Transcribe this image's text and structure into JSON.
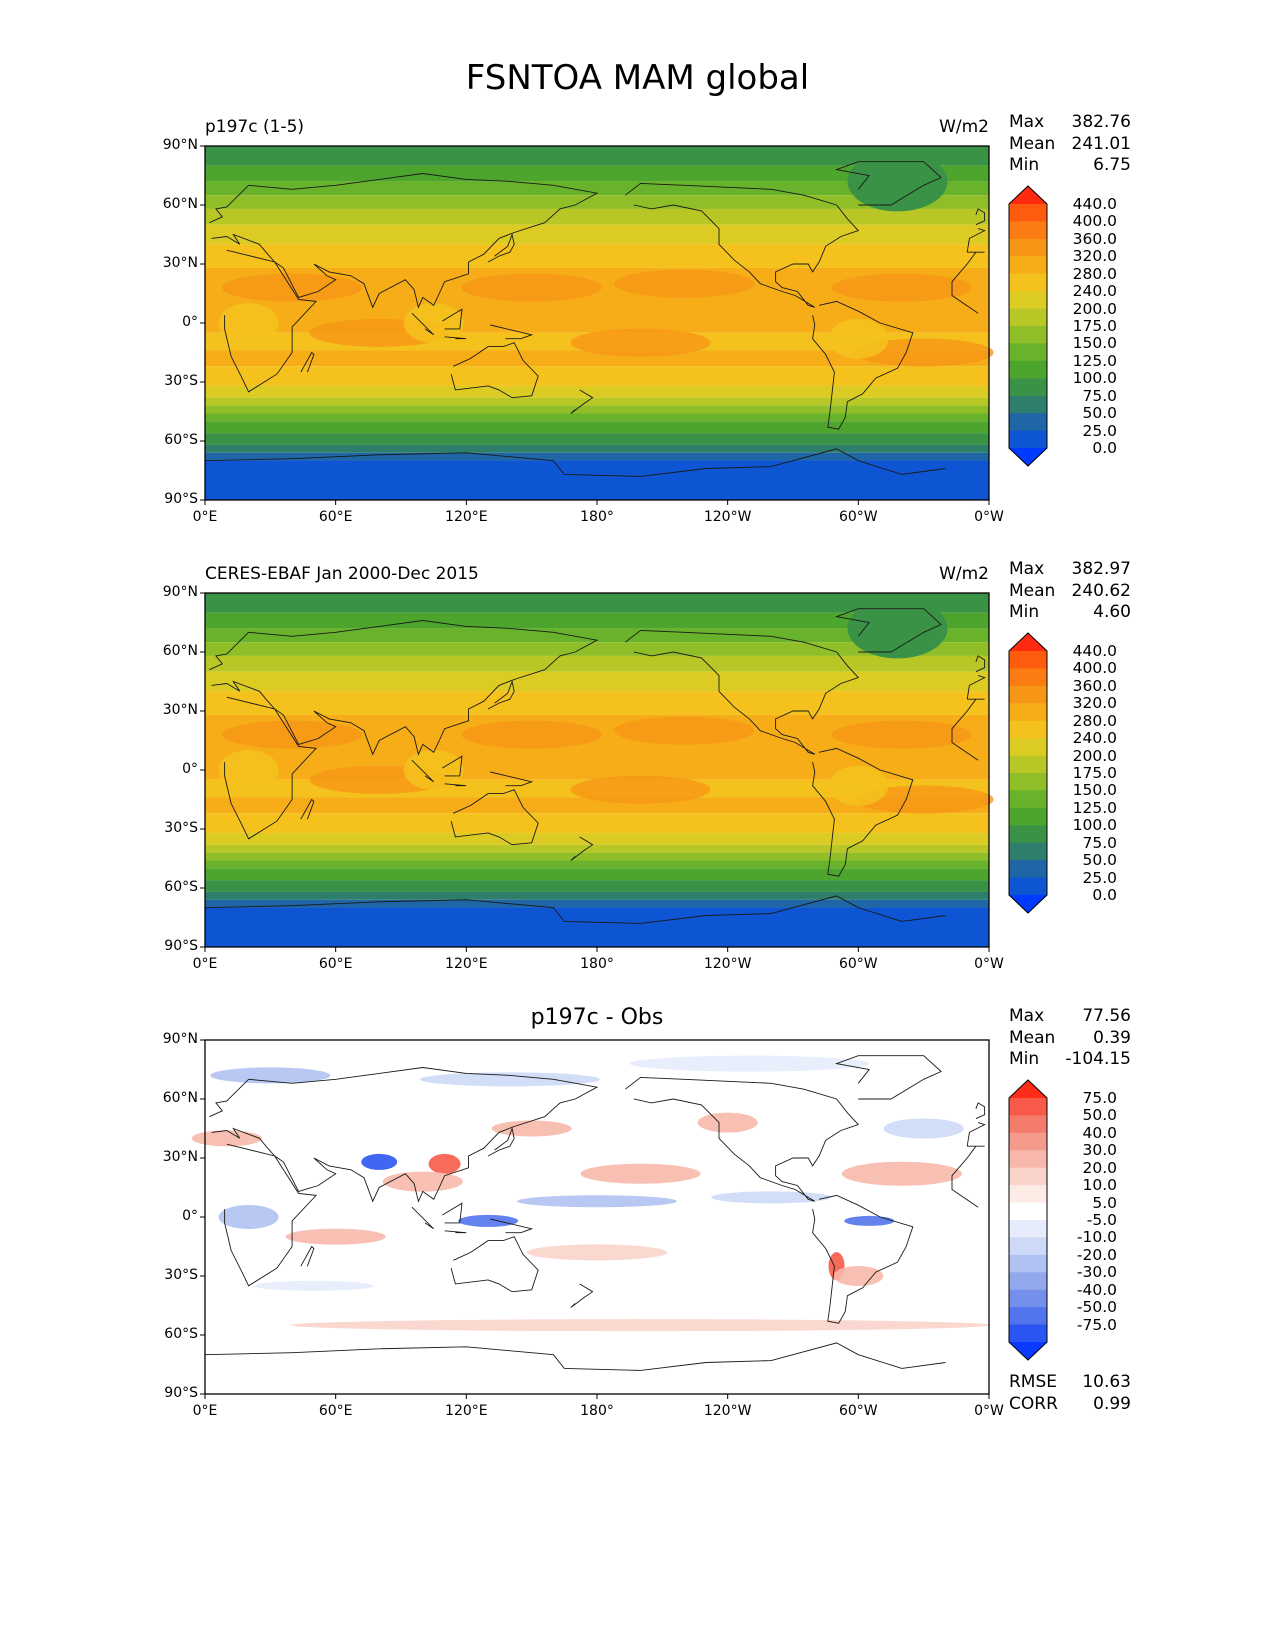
{
  "figure": {
    "title": "FSNTOA MAM global"
  },
  "axes": {
    "y_ticks": [
      "90°N",
      "60°N",
      "30°N",
      "0°",
      "30°S",
      "60°S",
      "90°S"
    ],
    "x_ticks": [
      "0°E",
      "60°E",
      "120°E",
      "180°",
      "120°W",
      "60°W",
      "0°W"
    ]
  },
  "panels": [
    {
      "title_left": "p197c (1-5)",
      "title_right": "W/m2",
      "stats": {
        "max_label": "Max",
        "max": "382.76",
        "mean_label": "Mean",
        "mean": "241.01",
        "min_label": "Min",
        "min": "6.75"
      },
      "colorbar": {
        "labels": [
          "440.0",
          "400.0",
          "360.0",
          "320.0",
          "280.0",
          "240.0",
          "200.0",
          "175.0",
          "150.0",
          "125.0",
          "100.0",
          "75.0",
          "50.0",
          "25.0",
          "0.0"
        ],
        "colors": [
          "#ff2a10",
          "#ff5b0f",
          "#fb7c12",
          "#f79616",
          "#f6ad18",
          "#f5c21d",
          "#dccb22",
          "#b8c726",
          "#8fbe29",
          "#69b22b",
          "#4ea52e",
          "#3a9246",
          "#2e7e6c",
          "#1f66a6",
          "#0d55d2",
          "#0039ff"
        ]
      }
    },
    {
      "title_left": "CERES-EBAF Jan 2000-Dec 2015",
      "title_right": "W/m2",
      "stats": {
        "max_label": "Max",
        "max": "382.97",
        "mean_label": "Mean",
        "mean": "240.62",
        "min_label": "Min",
        "min": "4.60"
      },
      "colorbar": {
        "labels": [
          "440.0",
          "400.0",
          "360.0",
          "320.0",
          "280.0",
          "240.0",
          "200.0",
          "175.0",
          "150.0",
          "125.0",
          "100.0",
          "75.0",
          "50.0",
          "25.0",
          "0.0"
        ],
        "colors": [
          "#ff2a10",
          "#ff5b0f",
          "#fb7c12",
          "#f79616",
          "#f6ad18",
          "#f5c21d",
          "#dccb22",
          "#b8c726",
          "#8fbe29",
          "#69b22b",
          "#4ea52e",
          "#3a9246",
          "#2e7e6c",
          "#1f66a6",
          "#0d55d2",
          "#0039ff"
        ]
      }
    },
    {
      "title_center": "p197c - Obs",
      "stats": {
        "max_label": "Max",
        "max": "77.56",
        "mean_label": "Mean",
        "mean": "0.39",
        "min_label": "Min",
        "min": "-104.15"
      },
      "extra_stats": {
        "rmse_label": "RMSE",
        "rmse": "10.63",
        "corr_label": "CORR",
        "corr": "0.99"
      },
      "colorbar": {
        "labels": [
          "75.0",
          "50.0",
          "40.0",
          "30.0",
          "20.0",
          "10.0",
          "5.0",
          "-5.0",
          "-10.0",
          "-20.0",
          "-30.0",
          "-40.0",
          "-50.0",
          "-75.0"
        ],
        "colors": [
          "#ff2d18",
          "#f75a48",
          "#f47c6c",
          "#f49b8c",
          "#f7b8ab",
          "#fad3ca",
          "#fdebe6",
          "#ffffff",
          "#e6ecfb",
          "#cdd9f6",
          "#b0c2f1",
          "#93a9ed",
          "#7590ea",
          "#5274ec",
          "#2b55f2",
          "#0a3aff"
        ]
      }
    }
  ]
}
